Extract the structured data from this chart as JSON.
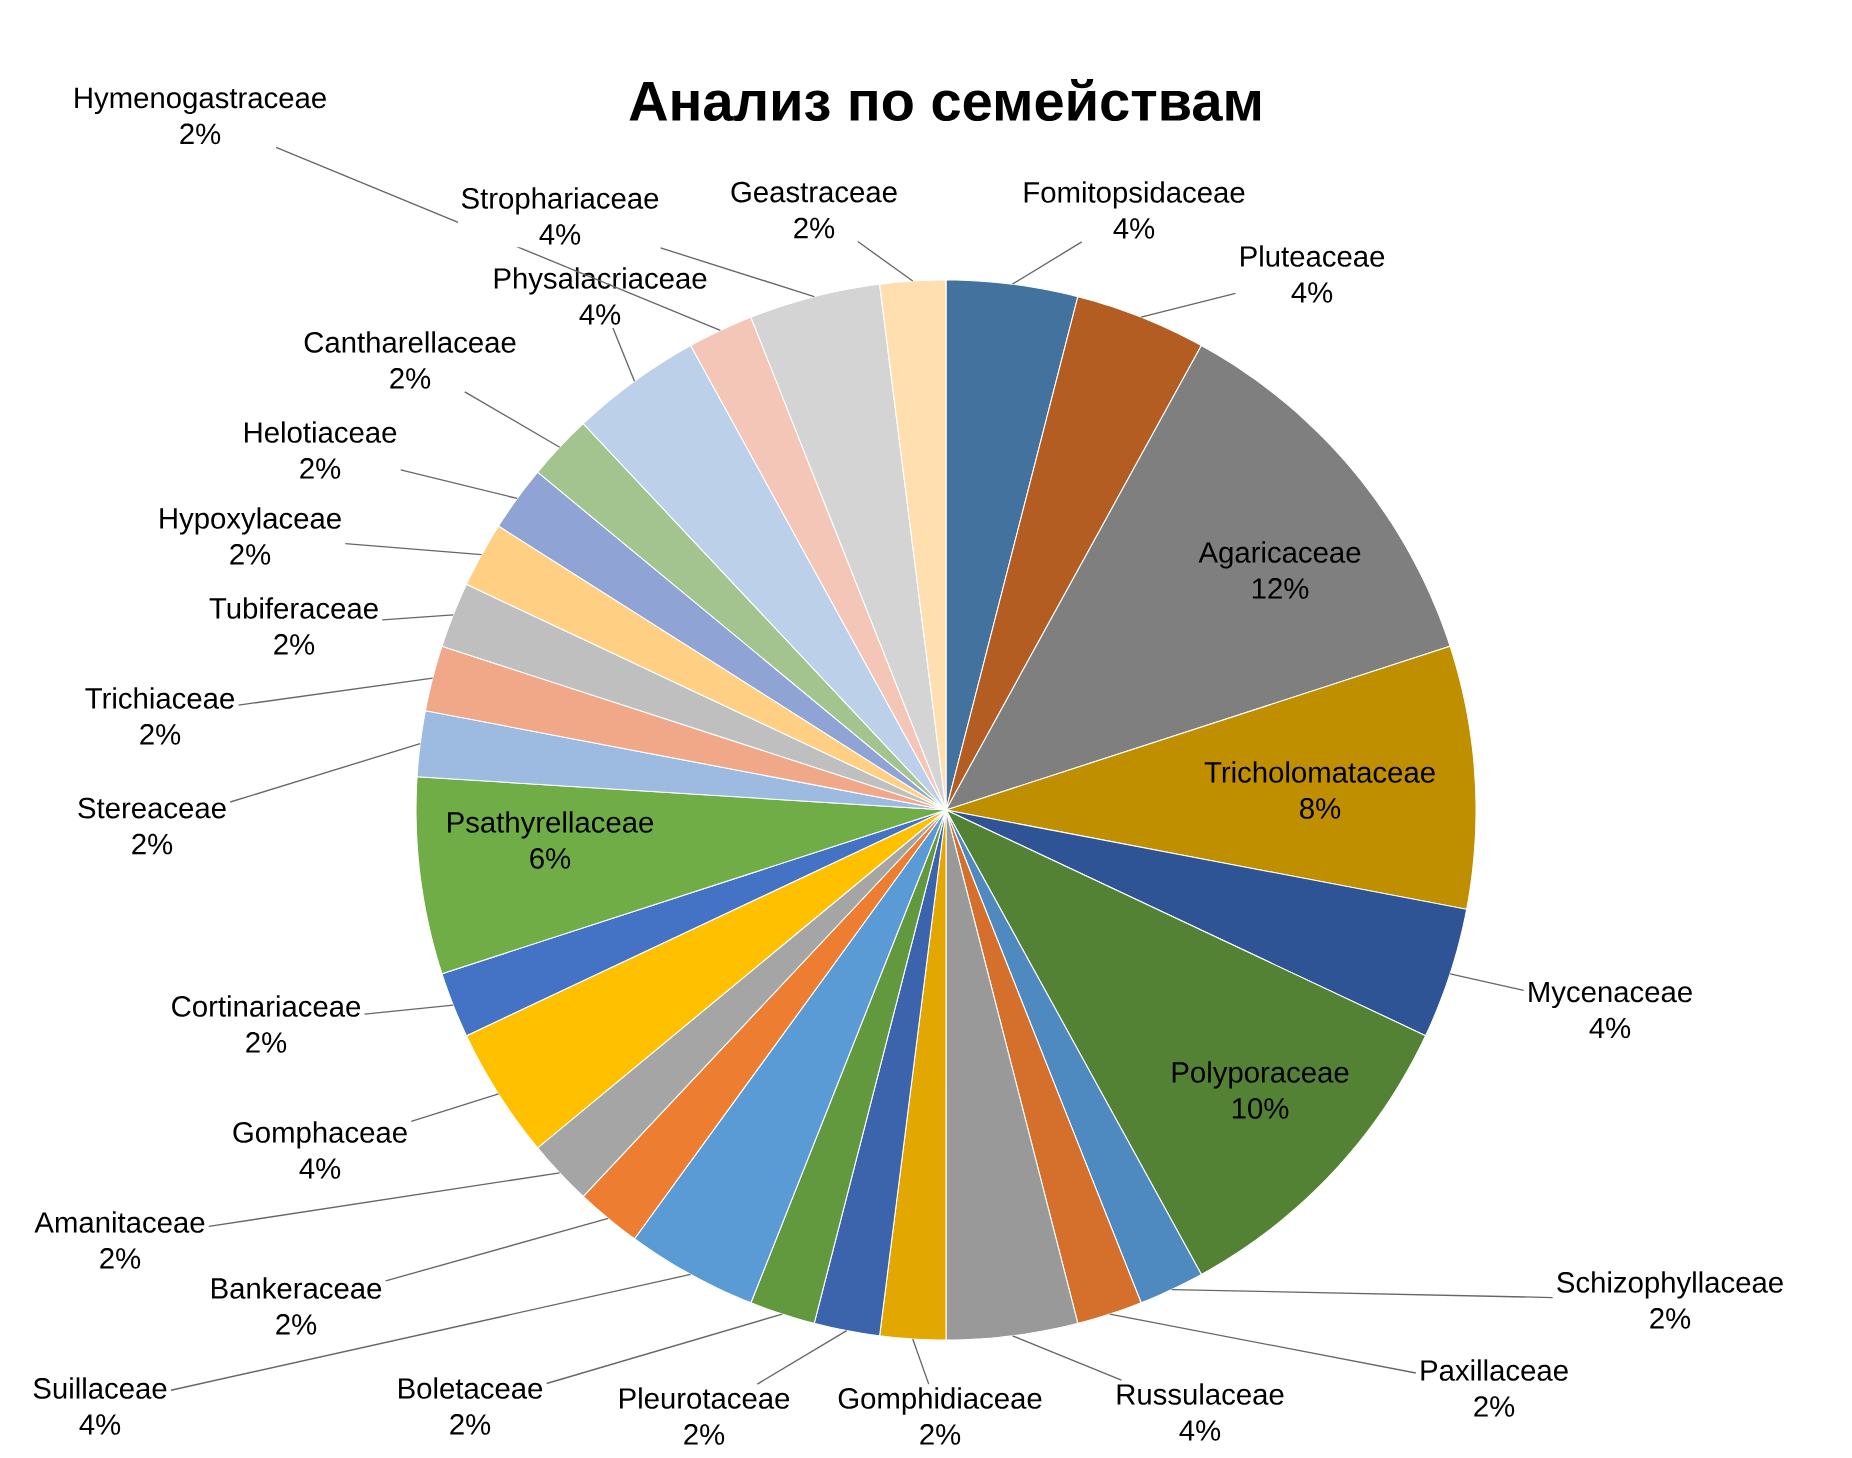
{
  "chart_data": {
    "type": "pie",
    "title": "Анализ по семействам",
    "categories": [
      "Fomitopsidaceae",
      "Pluteaceae",
      "Agaricaceae",
      "Tricholomataceae",
      "Mycenaceae",
      "Polyporaceae",
      "Schizophyllaceae",
      "Paxillaceae",
      "Russulaceae",
      "Gomphidiaceae",
      "Pleurotaceae",
      "Boletaceae",
      "Suillaceae",
      "Bankeraceae",
      "Amanitaceae",
      "Gomphaceae",
      "Cortinariaceae",
      "Psathyrellaceae",
      "Stereaceae",
      "Trichiaceae",
      "Tubiferaceae",
      "Hypoxylaceae",
      "Helotiaceae",
      "Cantharellaceae",
      "Physalacriaceae",
      "Hymenogastraceae",
      "Strophariaceae",
      "Geastraceae"
    ],
    "values": [
      4,
      4,
      12,
      8,
      4,
      10,
      2,
      2,
      4,
      2,
      2,
      2,
      4,
      2,
      2,
      4,
      2,
      6,
      2,
      2,
      2,
      2,
      2,
      2,
      4,
      2,
      4,
      2
    ],
    "value_labels": [
      "4%",
      "4%",
      "12%",
      "8%",
      "4%",
      "10%",
      "2%",
      "2%",
      "4%",
      "2%",
      "2%",
      "2%",
      "4%",
      "2%",
      "2%",
      "4%",
      "2%",
      "6%",
      "2%",
      "2%",
      "2%",
      "2%",
      "2%",
      "2%",
      "4%",
      "2%",
      "4%",
      "2%"
    ],
    "colors": [
      "#43729f",
      "#b45d22",
      "#7f7f7f",
      "#bf8f00",
      "#2f5496",
      "#548235",
      "#4e8ac0",
      "#d5702c",
      "#999999",
      "#e2a700",
      "#3b64ad",
      "#62993e",
      "#5b9bd5",
      "#ed7d31",
      "#a5a5a5",
      "#ffc000",
      "#4472c4",
      "#70ad47",
      "#9dbbe0",
      "#f1a889",
      "#bfbfbf",
      "#ffd083",
      "#8fa3d4",
      "#a3c48f",
      "#bdd0ea",
      "#f4c6b8",
      "#d4d4d4",
      "#ffdfb0"
    ]
  }
}
